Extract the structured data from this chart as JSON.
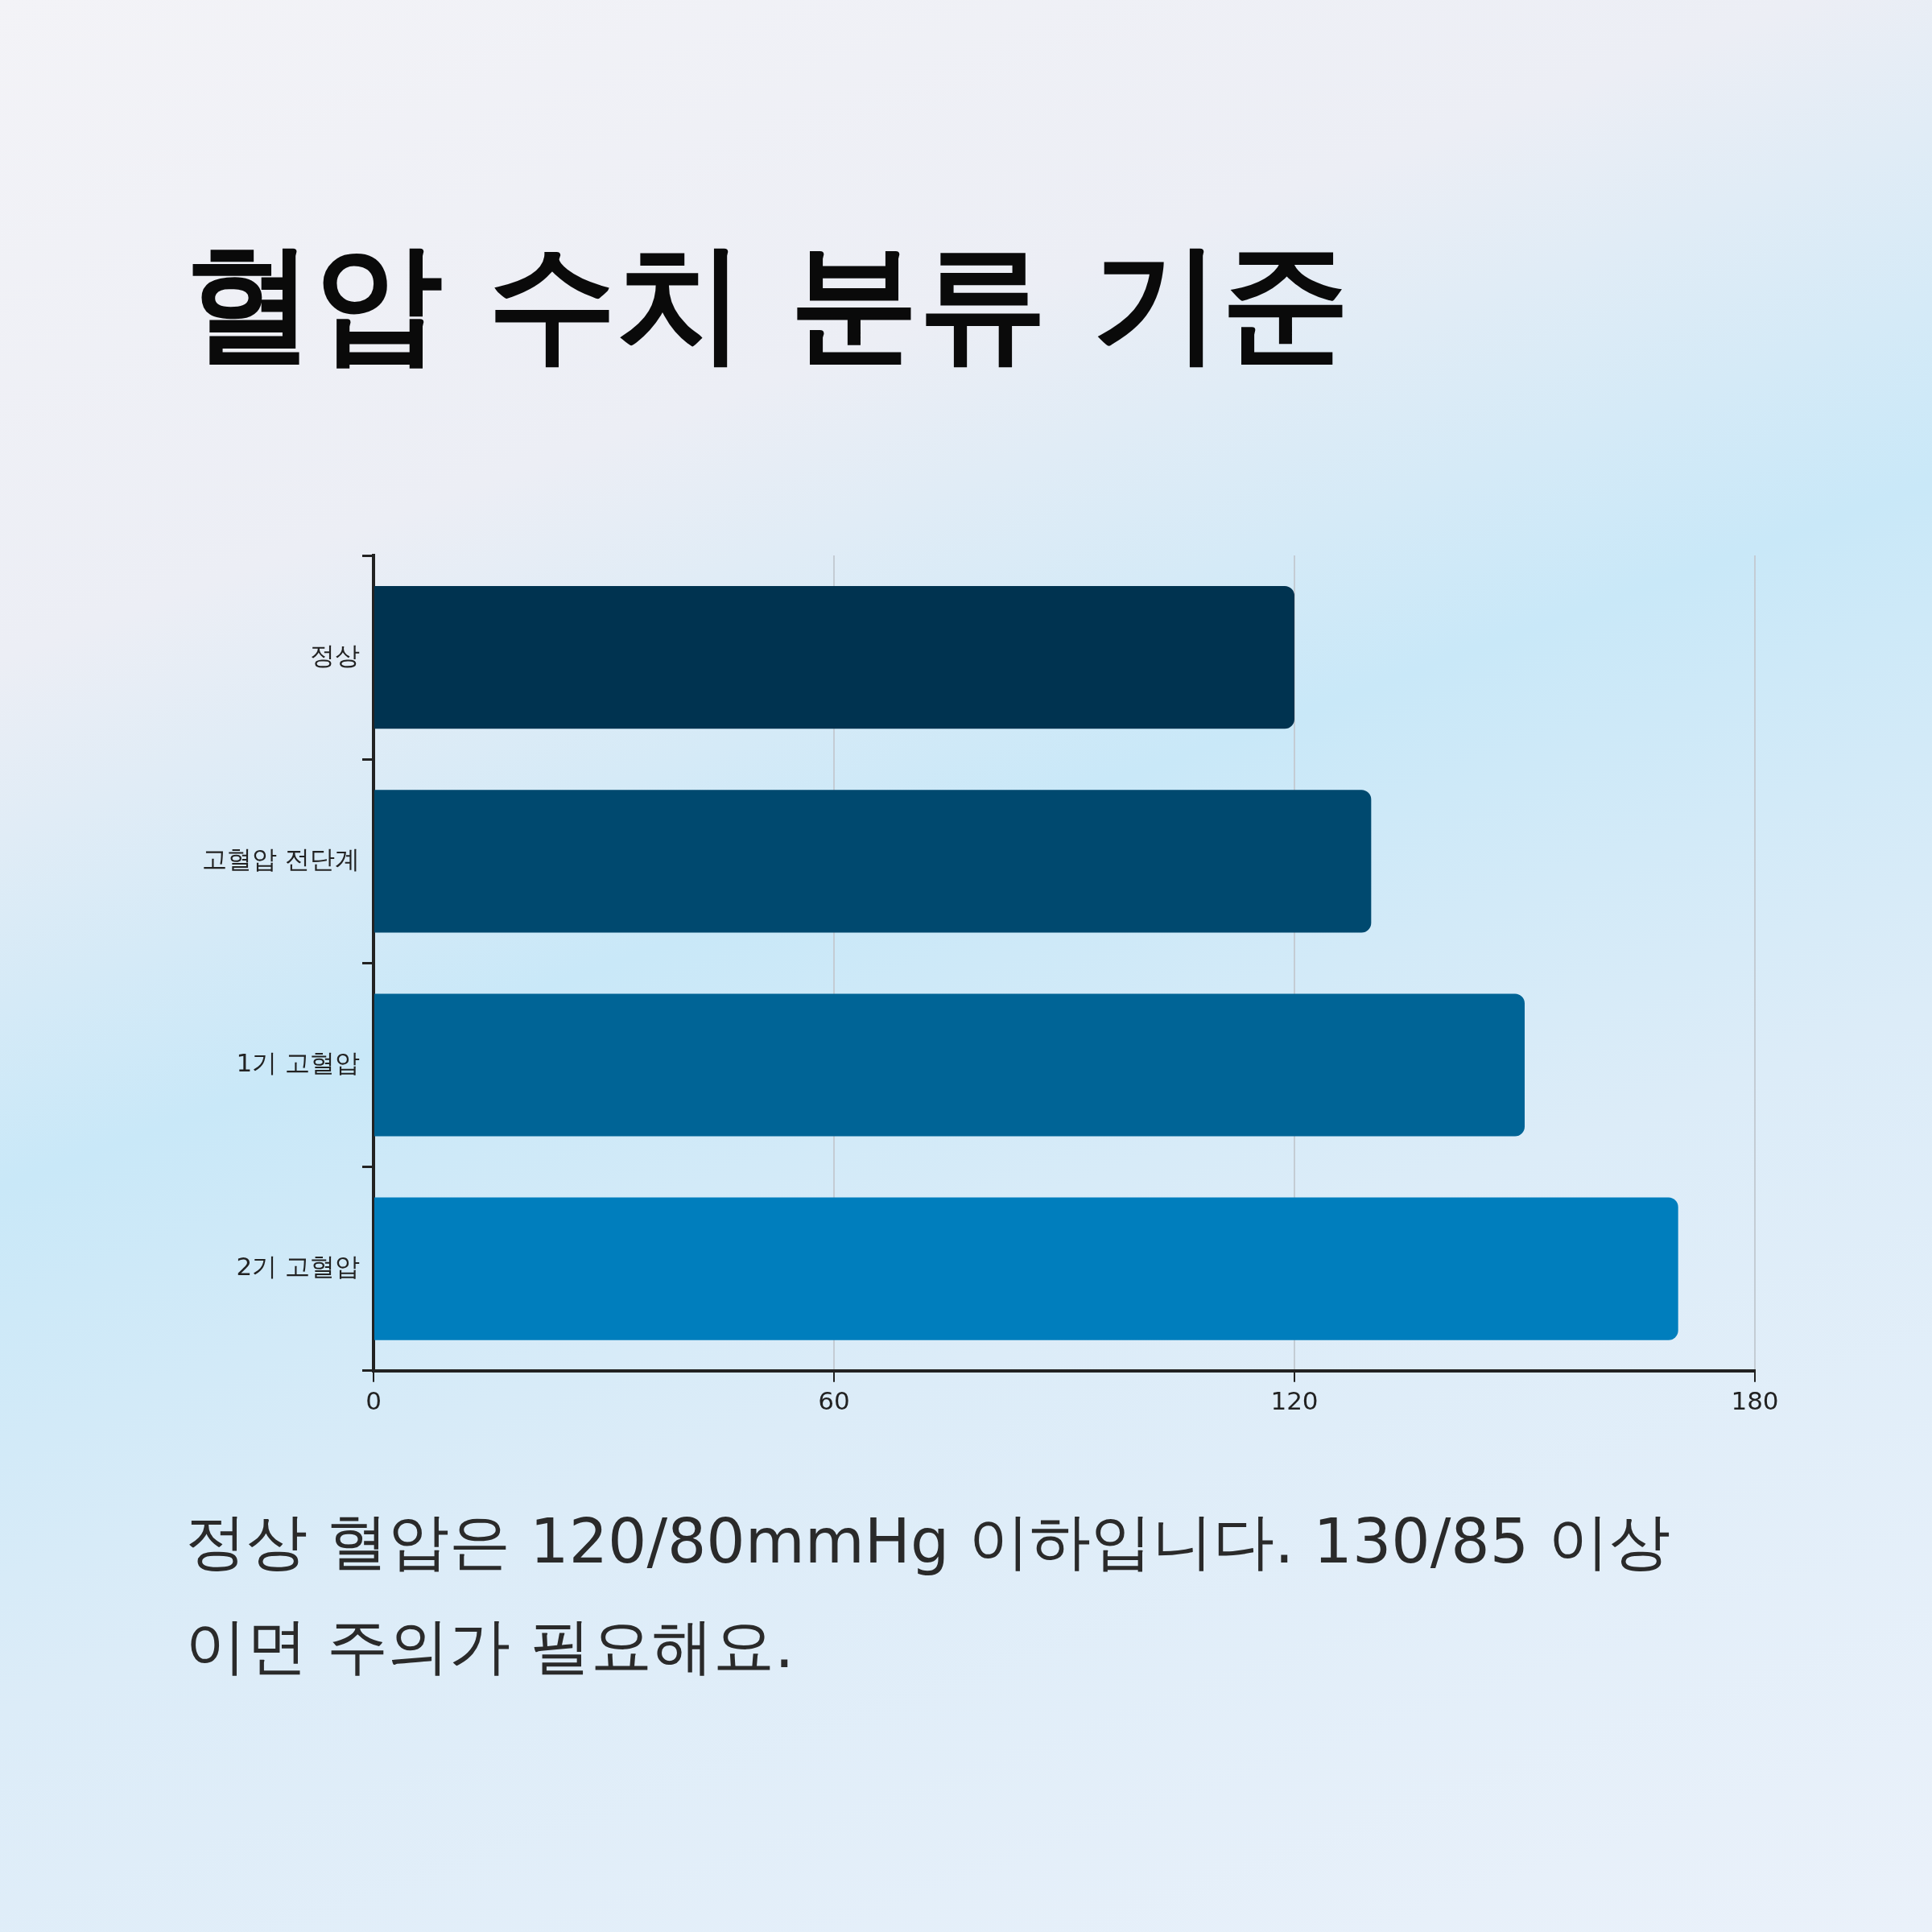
{
  "chart_data": {
    "type": "bar",
    "orientation": "horizontal",
    "title": "혈압 수치 분류 기준",
    "categories": [
      "정상",
      "고혈압 전단계",
      "1기 고혈압",
      "2기 고혈압"
    ],
    "values": [
      120,
      130,
      150,
      170
    ],
    "colors": [
      "#003350",
      "#00496f",
      "#006496",
      "#007ebd"
    ],
    "xlim": [
      0,
      180
    ],
    "xticks": [
      0,
      60,
      120,
      180
    ],
    "grid": "x",
    "annotations": [
      "정상 혈압은 120/80mmHg 이하입니다. 130/85 이상이면 주의가 필요해요."
    ]
  }
}
